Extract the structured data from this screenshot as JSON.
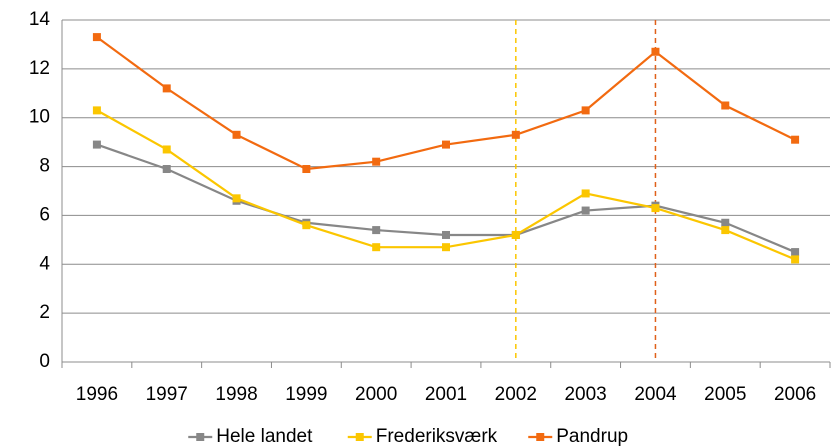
{
  "chart_data": {
    "type": "line",
    "categories": [
      "1996",
      "1997",
      "1998",
      "1999",
      "2000",
      "2001",
      "2002",
      "2003",
      "2004",
      "2005",
      "2006"
    ],
    "series": [
      {
        "name": "Hele landet",
        "color": "#878787",
        "values": [
          8.9,
          7.9,
          6.6,
          5.7,
          5.4,
          5.2,
          5.2,
          6.2,
          6.4,
          5.7,
          4.5
        ]
      },
      {
        "name": "Frederiksværk",
        "color": "#fbc600",
        "values": [
          10.3,
          8.7,
          6.7,
          5.6,
          4.7,
          4.7,
          5.2,
          6.9,
          6.3,
          5.4,
          4.2
        ]
      },
      {
        "name": "Pandrup",
        "color": "#f26a10",
        "values": [
          13.3,
          11.2,
          9.3,
          7.9,
          8.2,
          8.9,
          9.3,
          10.3,
          12.7,
          10.5,
          9.1
        ]
      }
    ],
    "ylim": [
      0,
      14
    ],
    "yticks": [
      0,
      2,
      4,
      6,
      8,
      10,
      12,
      14
    ],
    "grid": true,
    "reference_lines": [
      {
        "at": "2002",
        "color": "#fbc600"
      },
      {
        "at": "2004",
        "color": "#e0601a"
      }
    ],
    "legend": "bottom"
  }
}
